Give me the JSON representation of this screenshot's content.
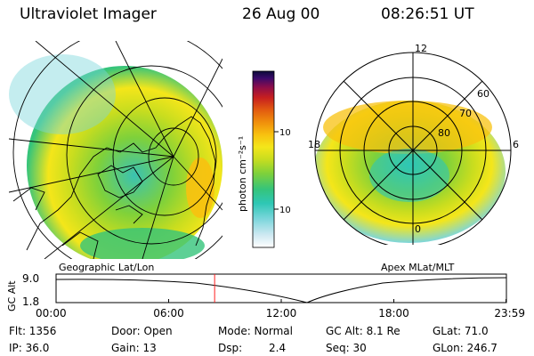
{
  "header": {
    "instrument": "Ultraviolet Imager",
    "date": "26 Aug 00",
    "time": "08:26:51 UT"
  },
  "colorbar": {
    "unit_label": "photon cm⁻²s⁻¹",
    "ticks": [
      "100",
      "10"
    ],
    "colors": [
      "#ffffff",
      "#cfe9f2",
      "#7dd6dc",
      "#2ec7b5",
      "#35c47b",
      "#7fd13a",
      "#c8dd1f",
      "#f4e61a",
      "#f8c10f",
      "#f08f0c",
      "#e25b10",
      "#c71f1f",
      "#8b0d4a",
      "#3a0a6a",
      "#0b0b3a"
    ]
  },
  "maps": {
    "geo_caption": "Geographic Lat/Lon",
    "polar_caption": "Apex MLat/MLT",
    "polar_mlt_labels": {
      "top": "12",
      "left": "18",
      "right": "6",
      "bottom": "0"
    },
    "polar_lat_labels": [
      "60",
      "70",
      "80"
    ]
  },
  "altitude": {
    "axis_label": "GC Alt",
    "y_ticks": [
      "9.0",
      "1.8"
    ],
    "x_ticks": [
      "00:00",
      "06:00",
      "12:00",
      "18:00",
      "23:59"
    ],
    "current_time_marker_hours": 8.45,
    "marker_color": "#ff2020"
  },
  "info": {
    "flt": "Flt: 1356",
    "ip": "IP: 36.0",
    "door": "Door: Open",
    "gain": "Gain: 13",
    "mode": "Mode: Normal",
    "dsp_label": "Dsp:",
    "dsp_value": "2.4",
    "gc_alt": "GC Alt: 8.1 Re",
    "seq": "Seq: 30",
    "glat": "GLat:  71.0",
    "glon": "GLon: 246.7"
  }
}
